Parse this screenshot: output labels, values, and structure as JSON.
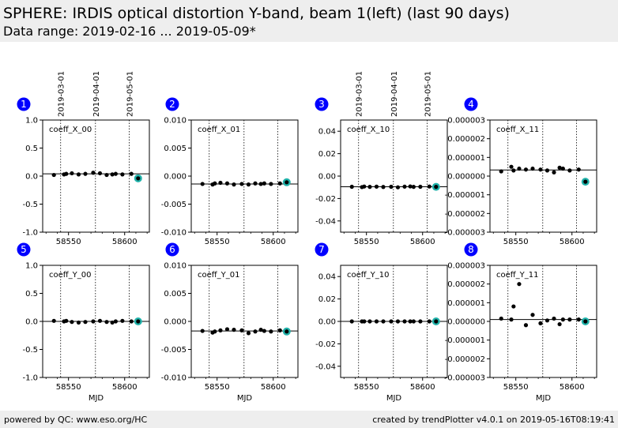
{
  "header": {
    "title": "SPHERE: IRDIS optical distortion Y-band, beam 1(left) (last 90 days)",
    "subtitle": "Data range: 2019-02-16 ... 2019-05-09*"
  },
  "footer": {
    "left": "powered by QC: www.eso.org/HC",
    "right": "created by trendPlotter v4.0.1 on 2019-05-16T08:19:41"
  },
  "colors": {
    "header_bg": "#eeeeee",
    "badge": "#0000ff",
    "last_point_ring": "#20b2aa",
    "point": "#000000"
  },
  "chart_data": [
    {
      "type": "scatter",
      "badge": "1",
      "label": "coeff_X_00",
      "ylim": [
        -1.0,
        1.0
      ],
      "yticks": [
        "1.0",
        "0.5",
        "0.0",
        "-0.5",
        "-1.0"
      ],
      "ytick_values": [
        1.0,
        0.5,
        0.0,
        -0.5,
        -1.0
      ],
      "xlim": [
        58527,
        58622
      ],
      "xticks": [
        58550,
        58600
      ],
      "xtick_labels": [
        "58550",
        "58600"
      ],
      "reference": 0.04,
      "date_lines": [
        58543,
        58574,
        58604
      ],
      "date_labels": [
        "2019-03-01",
        "2019-04-01",
        "2019-05-01"
      ],
      "xlabel": "",
      "x": [
        58537,
        58546,
        58548,
        58553,
        58559,
        58565,
        58572,
        58578,
        58584,
        58589,
        58592,
        58598,
        58606
      ],
      "y": [
        0.02,
        0.03,
        0.04,
        0.05,
        0.03,
        0.04,
        0.06,
        0.05,
        0.02,
        0.03,
        0.04,
        0.03,
        0.04
      ],
      "last": [
        58612,
        -0.04
      ]
    },
    {
      "type": "scatter",
      "badge": "2",
      "label": "coeff_X_01",
      "ylim": [
        -0.01,
        0.01
      ],
      "yticks": [
        "0.010",
        "0.005",
        "0.000",
        "-0.005",
        "-0.010"
      ],
      "ytick_values": [
        0.01,
        0.005,
        0.0,
        -0.005,
        -0.01
      ],
      "xlim": [
        58527,
        58622
      ],
      "xticks": [
        58550,
        58600
      ],
      "xtick_labels": [
        "58550",
        "58600"
      ],
      "reference": -0.0014,
      "date_lines": [
        58543,
        58574,
        58604
      ],
      "date_labels": [],
      "xlabel": "",
      "x": [
        58537,
        58546,
        58548,
        58553,
        58559,
        58565,
        58572,
        58578,
        58584,
        58589,
        58592,
        58598,
        58606
      ],
      "y": [
        -0.0014,
        -0.0015,
        -0.0013,
        -0.0012,
        -0.0013,
        -0.0015,
        -0.0014,
        -0.0015,
        -0.0013,
        -0.0014,
        -0.0013,
        -0.0014,
        -0.0013
      ],
      "last": [
        58612,
        -0.0011
      ]
    },
    {
      "type": "scatter",
      "badge": "3",
      "label": "coeff_X_10",
      "ylim": [
        -0.05,
        0.05
      ],
      "yticks": [
        "0.04",
        "0.02",
        "0.00",
        "-0.02",
        "-0.04"
      ],
      "ytick_values": [
        0.04,
        0.02,
        0.0,
        -0.02,
        -0.04
      ],
      "xlim": [
        58527,
        58622
      ],
      "xticks": [
        58550,
        58600
      ],
      "xtick_labels": [
        "58550",
        "58600"
      ],
      "reference": -0.0095,
      "date_lines": [
        58543,
        58574,
        58604
      ],
      "date_labels": [
        "2019-03-01",
        "2019-04-01",
        "2019-05-01"
      ],
      "xlabel": "",
      "x": [
        58537,
        58546,
        58548,
        58553,
        58559,
        58565,
        58572,
        58578,
        58584,
        58589,
        58592,
        58598,
        58606
      ],
      "y": [
        -0.0095,
        -0.0098,
        -0.0093,
        -0.0096,
        -0.0094,
        -0.0097,
        -0.0095,
        -0.01,
        -0.0094,
        -0.0092,
        -0.0096,
        -0.0095,
        -0.0093
      ],
      "last": [
        58612,
        -0.0096
      ]
    },
    {
      "type": "scatter",
      "badge": "4",
      "label": "coeff_X_11",
      "ylim": [
        -3e-06,
        3e-06
      ],
      "yticks": [
        "0.000003",
        "0.000002",
        "0.000001",
        "0.000000",
        "-0.000001",
        "-0.000002",
        "-0.000003"
      ],
      "ytick_values": [
        3e-06,
        2e-06,
        1e-06,
        0.0,
        -1e-06,
        -2e-06,
        -3e-06
      ],
      "xlim": [
        58527,
        58622
      ],
      "xticks": [
        58550,
        58600
      ],
      "xtick_labels": [
        "58550",
        "58600"
      ],
      "reference": 3.3e-07,
      "date_lines": [
        58543,
        58574,
        58604
      ],
      "date_labels": [],
      "xlabel": "",
      "x": [
        58537,
        58546,
        58548,
        58553,
        58559,
        58565,
        58572,
        58578,
        58584,
        58589,
        58592,
        58598,
        58606
      ],
      "y": [
        2.5e-07,
        5e-07,
        3e-07,
        4e-07,
        3.5e-07,
        4e-07,
        3.5e-07,
        3e-07,
        2e-07,
        4.5e-07,
        4e-07,
        3e-07,
        3.5e-07
      ],
      "last": [
        58612,
        -3e-07
      ]
    },
    {
      "type": "scatter",
      "badge": "5",
      "label": "coeff_Y_00",
      "ylim": [
        -1.0,
        1.0
      ],
      "yticks": [
        "1.0",
        "0.5",
        "0.0",
        "-0.5",
        "-1.0"
      ],
      "ytick_values": [
        1.0,
        0.5,
        0.0,
        -0.5,
        -1.0
      ],
      "xlim": [
        58527,
        58622
      ],
      "xticks": [
        58550,
        58600
      ],
      "xtick_labels": [
        "58550",
        "58600"
      ],
      "reference": 0.0,
      "date_lines": [
        58543,
        58574,
        58604
      ],
      "date_labels": [],
      "xlabel": "MJD",
      "x": [
        58537,
        58546,
        58548,
        58553,
        58559,
        58565,
        58572,
        58578,
        58584,
        58589,
        58592,
        58598,
        58606
      ],
      "y": [
        0.01,
        0.0,
        0.01,
        -0.01,
        -0.02,
        -0.01,
        0.0,
        0.01,
        -0.01,
        -0.02,
        0.0,
        0.01,
        0.0
      ],
      "last": [
        58612,
        0.0
      ]
    },
    {
      "type": "scatter",
      "badge": "6",
      "label": "coeff_Y_01",
      "ylim": [
        -0.01,
        0.01
      ],
      "yticks": [
        "0.010",
        "0.005",
        "0.000",
        "-0.005",
        "-0.010"
      ],
      "ytick_values": [
        0.01,
        0.005,
        0.0,
        -0.005,
        -0.01
      ],
      "xlim": [
        58527,
        58622
      ],
      "xticks": [
        58550,
        58600
      ],
      "xtick_labels": [
        "58550",
        "58600"
      ],
      "reference": -0.0017,
      "date_lines": [
        58543,
        58574,
        58604
      ],
      "date_labels": [],
      "xlabel": "MJD",
      "x": [
        58537,
        58546,
        58548,
        58553,
        58559,
        58565,
        58572,
        58578,
        58584,
        58589,
        58592,
        58598,
        58606
      ],
      "y": [
        -0.0017,
        -0.002,
        -0.0018,
        -0.0016,
        -0.0014,
        -0.0015,
        -0.0016,
        -0.0021,
        -0.0018,
        -0.0015,
        -0.0017,
        -0.0018,
        -0.0016
      ],
      "last": [
        58612,
        -0.0018
      ]
    },
    {
      "type": "scatter",
      "badge": "7",
      "label": "coeff_Y_10",
      "ylim": [
        -0.05,
        0.05
      ],
      "yticks": [
        "0.04",
        "0.02",
        "0.00",
        "-0.02",
        "-0.04"
      ],
      "ytick_values": [
        0.04,
        0.02,
        0.0,
        -0.02,
        -0.04
      ],
      "xlim": [
        58527,
        58622
      ],
      "xticks": [
        58550,
        58600
      ],
      "xtick_labels": [
        "58550",
        "58600"
      ],
      "reference": 0.0,
      "date_lines": [
        58543,
        58574,
        58604
      ],
      "date_labels": [],
      "xlabel": "MJD",
      "x": [
        58537,
        58546,
        58548,
        58553,
        58559,
        58565,
        58572,
        58578,
        58584,
        58589,
        58592,
        58598,
        58606
      ],
      "y": [
        0.0,
        0.0,
        0.0,
        0.0,
        0.0,
        0.0,
        0.0,
        0.0,
        0.0,
        0.0,
        0.0,
        0.0,
        0.0
      ],
      "last": [
        58612,
        0.0
      ]
    },
    {
      "type": "scatter",
      "badge": "8",
      "label": "coeff_Y_11",
      "ylim": [
        -3e-06,
        3e-06
      ],
      "yticks": [
        "0.000003",
        "0.000002",
        "0.000001",
        "0.000000",
        "-0.000001",
        "-0.000002",
        "-0.000003"
      ],
      "ytick_values": [
        3e-06,
        2e-06,
        1e-06,
        0.0,
        -1e-06,
        -2e-06,
        -3e-06
      ],
      "xlim": [
        58527,
        58622
      ],
      "xticks": [
        58550,
        58600
      ],
      "xtick_labels": [
        "58550",
        "58600"
      ],
      "reference": 1e-07,
      "date_lines": [
        58543,
        58574,
        58604
      ],
      "date_labels": [],
      "xlabel": "MJD",
      "x": [
        58537,
        58546,
        58548,
        58553,
        58559,
        58565,
        58572,
        58578,
        58584,
        58589,
        58592,
        58598,
        58606
      ],
      "y": [
        1.5e-07,
        1e-07,
        8e-07,
        2e-06,
        -2e-07,
        3.5e-07,
        -1e-07,
        5e-08,
        1.5e-07,
        -1.5e-07,
        1e-07,
        1e-07,
        1e-07
      ],
      "last": [
        58612,
        0.0
      ]
    }
  ]
}
